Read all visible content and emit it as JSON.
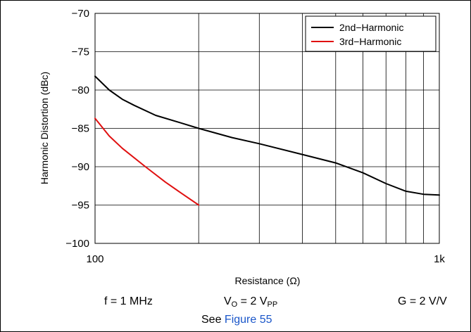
{
  "chart_data": {
    "type": "line",
    "xlabel": "Resistance (Ω)",
    "ylabel": "Harmonic Distortion (dBc)",
    "xscale": "log",
    "xlim": [
      100,
      1000
    ],
    "ylim": [
      -100,
      -70
    ],
    "x_tick_labels": [
      "100",
      "1k"
    ],
    "y_ticks": [
      -70,
      -75,
      -80,
      -85,
      -90,
      -95,
      -100
    ],
    "y_tick_labels": [
      "−70",
      "−75",
      "−80",
      "−85",
      "−90",
      "−95",
      "−100"
    ],
    "grid": true,
    "legend_position": "top-right",
    "series": [
      {
        "name": "2nd−Harmonic",
        "color": "#000000",
        "x": [
          100,
          110,
          120,
          130,
          150,
          175,
          200,
          250,
          300,
          400,
          500,
          600,
          700,
          800,
          900,
          1000
        ],
        "y": [
          -78.2,
          -80.0,
          -81.2,
          -82.0,
          -83.3,
          -84.2,
          -85.0,
          -86.2,
          -87.0,
          -88.4,
          -89.5,
          -90.8,
          -92.2,
          -93.2,
          -93.6,
          -93.7
        ]
      },
      {
        "name": "3rd−Harmonic",
        "color": "#e01010",
        "x": [
          100,
          110,
          120,
          140,
          160,
          180,
          200
        ],
        "y": [
          -83.7,
          -86.0,
          -87.6,
          -90.0,
          -92.0,
          -93.6,
          -95.0
        ]
      }
    ]
  },
  "conditions": {
    "freq": "f = 1 MHz",
    "vo_prefix": "V",
    "vo_sub": "O",
    "vo_mid": " = 2 V",
    "vo_unit_sub": "PP",
    "gain": "G = 2 V/V",
    "see_prefix": "See ",
    "see_link": "Figure 55"
  }
}
